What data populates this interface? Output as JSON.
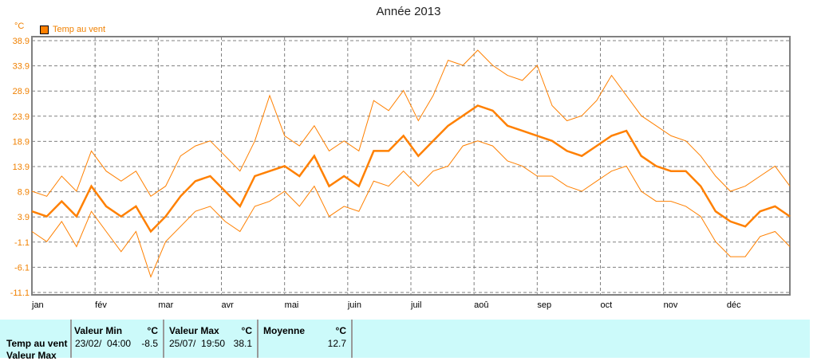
{
  "chart_data": {
    "type": "line",
    "title": "Année 2013",
    "ylabel": "°C",
    "ylim": [
      -11.1,
      38.9
    ],
    "yticks": [
      "38.9",
      "33.9",
      "28.9",
      "23.9",
      "18.9",
      "13.9",
      "8.9",
      "3.9",
      "-1.1",
      "-6.1",
      "-11.1"
    ],
    "ytick_values": [
      38.9,
      33.9,
      28.9,
      23.9,
      18.9,
      13.9,
      8.9,
      3.9,
      -1.1,
      -6.1,
      -11.1
    ],
    "xticks": [
      "jan",
      "fév",
      "mar",
      "avr",
      "mai",
      "juin",
      "juil",
      "aoû",
      "sep",
      "oct",
      "nov",
      "déc"
    ],
    "x_unit": "week of year",
    "grid": true,
    "legend": {
      "position": "top-left",
      "entries": [
        "Temp au vent"
      ]
    },
    "series": [
      {
        "name": "Temp au vent (moyenne)",
        "color": "#ff8000",
        "values": [
          5,
          4,
          7,
          4,
          10,
          6,
          4,
          6,
          1,
          4,
          8,
          11,
          12,
          9,
          6,
          12,
          13,
          14,
          12,
          16,
          10,
          12,
          10,
          17,
          17,
          20,
          16,
          19,
          22,
          24,
          26,
          25,
          22,
          21,
          20,
          19,
          17,
          16,
          18,
          20,
          21,
          16,
          14,
          13,
          13,
          10,
          5,
          3,
          2,
          5,
          6,
          4
        ]
      },
      {
        "name": "Temp au vent (max)",
        "color": "#ff8000",
        "values": [
          9,
          8,
          12,
          9,
          17,
          13,
          11,
          13,
          8,
          10,
          16,
          18,
          19,
          16,
          13,
          19,
          28,
          20,
          18,
          22,
          17,
          19,
          17,
          27,
          25,
          29,
          23,
          28,
          35,
          34,
          37,
          34,
          32,
          31,
          34,
          26,
          23,
          24,
          27,
          32,
          28,
          24,
          22,
          20,
          19,
          16,
          12,
          9,
          10,
          12,
          14,
          10
        ]
      },
      {
        "name": "Temp au vent (min)",
        "color": "#ff8000",
        "values": [
          1,
          -1,
          3,
          -2,
          5,
          1,
          -3,
          1,
          -8,
          -1,
          2,
          5,
          6,
          3,
          1,
          6,
          7,
          9,
          6,
          10,
          4,
          6,
          5,
          11,
          10,
          13,
          10,
          13,
          14,
          18,
          19,
          18,
          15,
          14,
          12,
          12,
          10,
          9,
          11,
          13,
          14,
          9,
          7,
          7,
          6,
          4,
          -1,
          -4,
          -4,
          0,
          1,
          -2
        ]
      }
    ]
  },
  "stats": {
    "row_label": "Temp au vent",
    "row_label2": "Valeur Max",
    "min_header": "Valeur Min",
    "min_unit": "°C",
    "min_date": "23/02/  04:00",
    "min_value": "-8.5",
    "max_header": "Valeur Max",
    "max_unit": "°C",
    "max_date": "25/07/  19:50",
    "max_value": "38.1",
    "avg_header": "Moyenne",
    "avg_unit": "°C",
    "avg_value": "12.7"
  }
}
